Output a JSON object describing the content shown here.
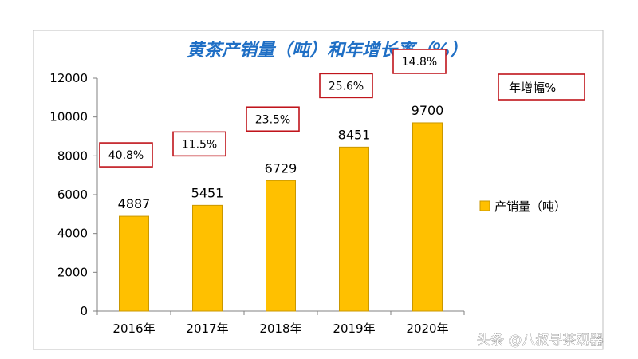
{
  "chart_data": {
    "type": "bar",
    "title": "黄茶产销量（吨）和年增长率（%）",
    "categories": [
      "2016年",
      "2017年",
      "2018年",
      "2019年",
      "2020年"
    ],
    "series": [
      {
        "name": "产销量（吨）",
        "values": [
          4887,
          5451,
          6729,
          8451,
          9700
        ],
        "color": "#ffc000",
        "stroke": "#c99700"
      }
    ],
    "growth_rates": [
      "40.8%",
      "11.5%",
      "23.5%",
      "25.6%",
      "14.8%"
    ],
    "growth_legend_label": "年增幅%",
    "growth_box_color": "#c0141b",
    "ylim": [
      0,
      12000
    ],
    "y_ticks": [
      "0",
      "2000",
      "4000",
      "6000",
      "8000",
      "10000",
      "12000"
    ],
    "grid": false,
    "legend_position": "right",
    "title_color": "#1f6fc5"
  },
  "watermark": "头条 @八叔寻茶观器"
}
